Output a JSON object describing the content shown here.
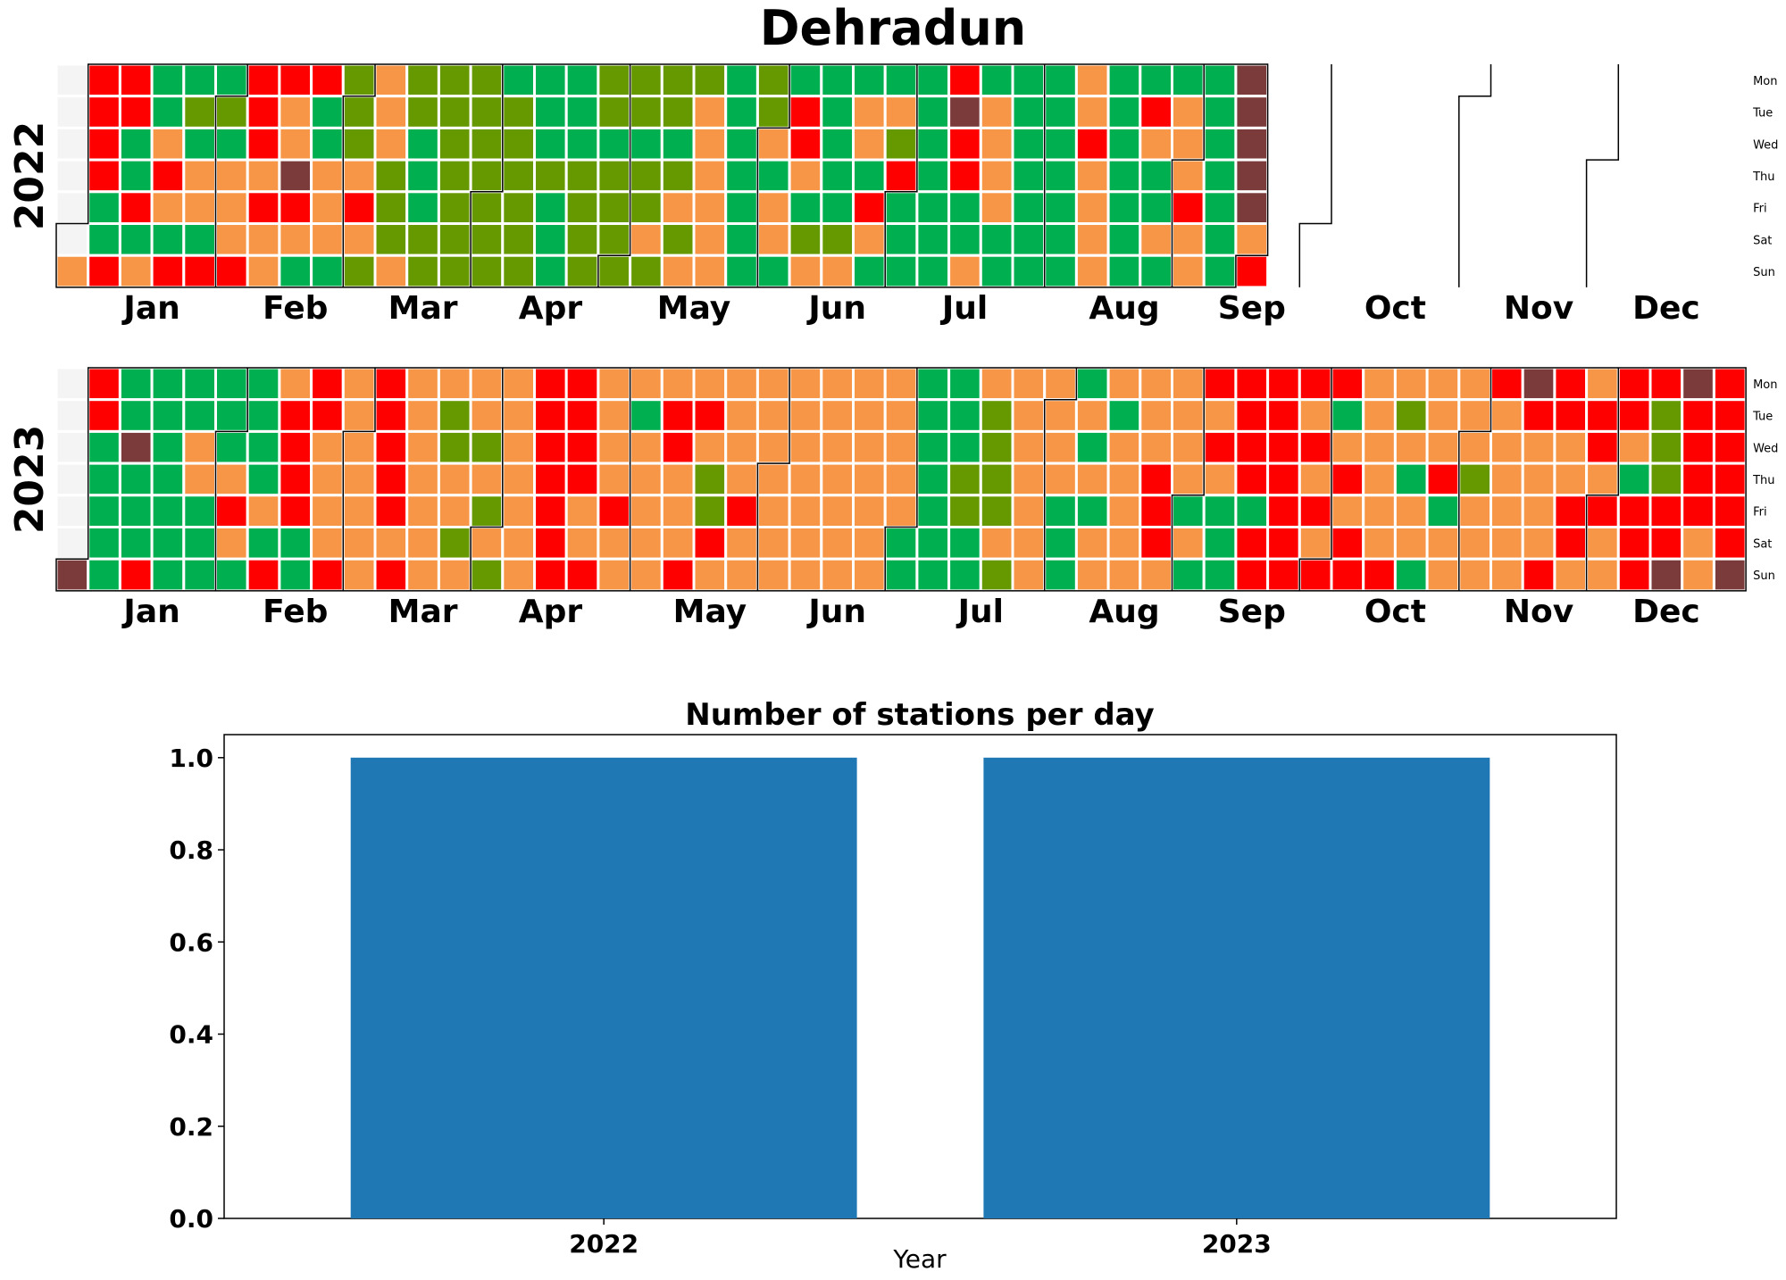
{
  "title": "Dehradun",
  "calendar": {
    "weekdays": [
      "Mon",
      "Tue",
      "Wed",
      "Thu",
      "Fri",
      "Sat",
      "Sun"
    ],
    "months": [
      "Jan",
      "Feb",
      "Mar",
      "Apr",
      "May",
      "Jun",
      "Jul",
      "Aug",
      "Sep",
      "Oct",
      "Nov",
      "Dec"
    ],
    "palette": {
      "G": "#00b050",
      "Y": "#669900",
      "O": "#f79646",
      "R": "#ff0000",
      "B": "#7b3b3b",
      "N": "#f4f4f4"
    },
    "years": [
      {
        "label": "2022",
        "start_weekday": "Sat",
        "missing_until": "2022-04-30",
        "weeks": [
          "NNNNNNO",
          "RRRRGGR",
          "RRGGRGO",
          "GGOROGR",
          "GYGOOGR",
          "GYGOOOR",
          "RRROROO",
          "ROOBROG",
          "RGGOOOG",
          "YYYOROY",
          "OOOYYYO",
          "YYGGGYY",
          "YYYYYYY",
          "YYYYYYY",
          "GYYYYYY",
          "GGGYGGG",
          "GGGYYYY",
          "YYGYYYY",
          "YYGYYOY",
          "YYGYOYO",
          "YOOOOOO",
          "GGGGGGG",
          "YYOGOOG",
          "GRROGYO",
          "GGGGGYO",
          "GOOGROG",
          "GOYRGGG",
          "GGGGGGG",
          "RBRRGGO",
          "GOOOOGG",
          "GGGGGGG",
          "GGGGGGG",
          "OOROOOO",
          "GGGGGGG",
          "GROGGOG",
          "GOOOROO",
          "GGGGGGG",
          "BBBBBOR"
        ]
      },
      {
        "label": "2023",
        "start_weekday": "Sun",
        "weeks": [
          "NNNNNNB",
          "RRGGGGG",
          "GGBGGGR",
          "GGGGGGG",
          "GGOOGGG",
          "GGGOROG",
          "GGGGOGR",
          "ORRRRGG",
          "RROOOOR",
          "OOOOOOO",
          "RRRRROR",
          "OOOOOOO",
          "OYYOOYO",
          "OOYOYOY",
          "OOOOOOO",
          "RRRRRRR",
          "RRRROOR",
          "OOOOROO",
          "OGOOOOO",
          "ORROOOR",
          "OROYYRO",
          "OOOOROO",
          "OOOOOOO",
          "OOOOOOO",
          "OOOOOOO",
          "OOOOOOO",
          "OOOOOGG",
          "GGGGGGG",
          "GGGYYGG",
          "OYYYYOY",
          "OOOOOOO",
          "OOOOGGG",
          "GOGOGOO",
          "OGOOOOO",
          "OOORRRO",
          "OOOOGOG",
          "ROROGGG",
          "RRRRGRR",
          "RRRRRRR",
          "ROROROR",
          "RGORORR",
          "OOOOOOR",
          "OYOGOOG",
          "OOORGOO",
          "OOOYOOO",
          "ROOOOOO",
          "BROOOOR",
          "RROORRO",
          "ORROROO",
          "RROGRRR",
          "RYYYRRB",
          "BRRRROO",
          "RRRRRRB"
        ]
      }
    ]
  },
  "bar_chart": {
    "title": "Number of stations per day",
    "xlabel": "Year",
    "ylabel": ""
  },
  "chart_data": {
    "type": "bar",
    "title": "Number of stations per day",
    "categories": [
      "2022",
      "2023"
    ],
    "values": [
      1,
      1
    ],
    "xlabel": "Year",
    "ylabel": "",
    "ylim": [
      0,
      1.05
    ],
    "yticks": [
      "0.0",
      "0.2",
      "0.4",
      "0.6",
      "0.8",
      "1.0"
    ],
    "bar_color": "#1f77b4",
    "grid": false
  }
}
